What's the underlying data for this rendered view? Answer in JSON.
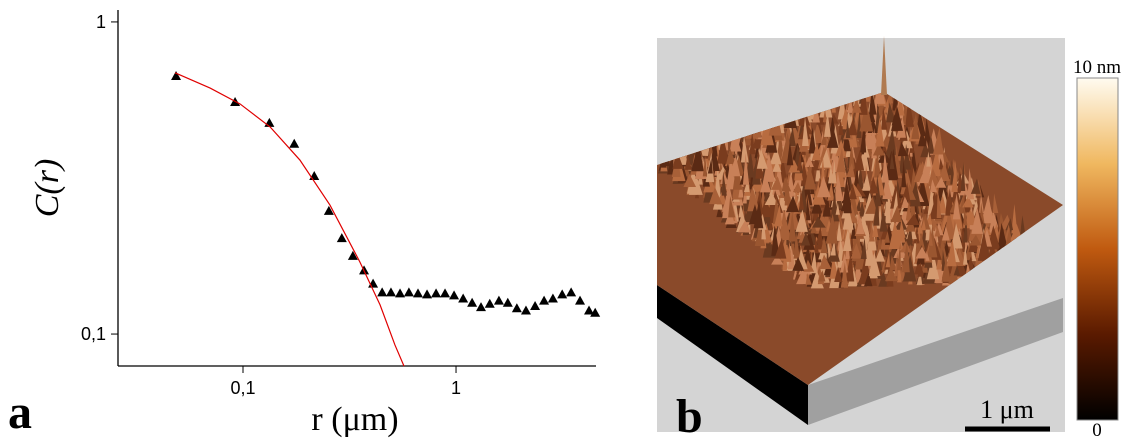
{
  "chart_data": {
    "type": "scatter",
    "panel_label": "a",
    "xlabel": "r (μm)",
    "ylabel": "C(r)",
    "log_x": true,
    "log_y": true,
    "xlim": [
      0.0259,
      4.54
    ],
    "ylim": [
      0.079,
      1.092
    ],
    "xticks": [
      {
        "value": 0.1,
        "label": "0,1"
      },
      1
    ],
    "yticks": [
      {
        "value": 0.1,
        "label": "0,1"
      },
      1
    ],
    "series": [
      {
        "name": "data",
        "color": "#000000",
        "marker": "triangle",
        "x": [
          0.0485,
          0.0918,
          0.133,
          0.174,
          0.216,
          0.253,
          0.291,
          0.328,
          0.37,
          0.408,
          0.45,
          0.495,
          0.546,
          0.601,
          0.663,
          0.731,
          0.806,
          0.888,
          0.979,
          1.08,
          1.19,
          1.31,
          1.44,
          1.59,
          1.75,
          1.93,
          2.13,
          2.35,
          2.59,
          2.85,
          3.15,
          3.47,
          3.82,
          4.21,
          4.5
        ],
        "values": [
          0.671,
          0.554,
          0.475,
          0.407,
          0.321,
          0.248,
          0.203,
          0.178,
          0.16,
          0.145,
          0.136,
          0.136,
          0.135,
          0.136,
          0.135,
          0.134,
          0.135,
          0.135,
          0.133,
          0.13,
          0.126,
          0.122,
          0.125,
          0.128,
          0.126,
          0.121,
          0.119,
          0.123,
          0.128,
          0.13,
          0.134,
          0.136,
          0.128,
          0.119,
          0.117
        ]
      },
      {
        "name": "fit",
        "color": "#e00000",
        "marker": "line",
        "x": [
          0.048,
          0.0701,
          0.0969,
          0.134,
          0.185,
          0.256,
          0.354,
          0.44,
          0.517,
          0.57
        ],
        "values": [
          0.687,
          0.614,
          0.546,
          0.461,
          0.361,
          0.259,
          0.17,
          0.124,
          0.0922,
          0.0789
        ]
      }
    ]
  },
  "panel_b": {
    "panel_label": "b",
    "scale_bar": "1 μm",
    "colorbar_max": "10 nm",
    "colorbar_min": "0"
  }
}
